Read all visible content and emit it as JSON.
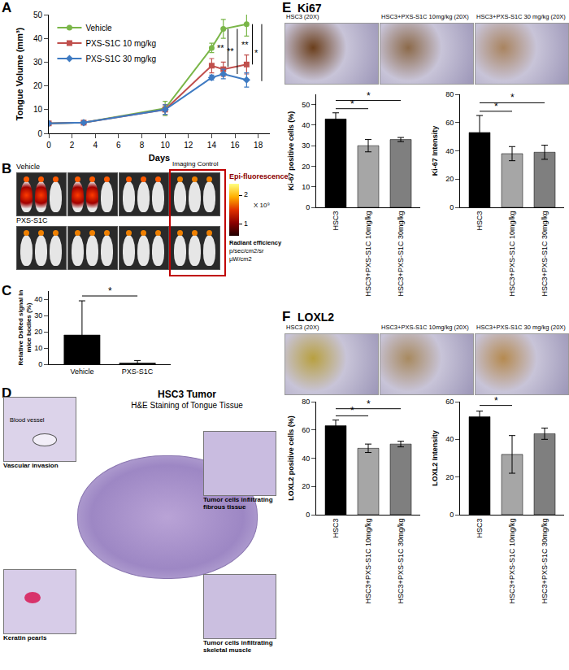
{
  "panel_labels": [
    "A",
    "B",
    "C",
    "D",
    "E",
    "F"
  ],
  "chart_data": [
    {
      "type": "line",
      "xlabel": "Days",
      "ylabel": "Tongue Volume (mm³)",
      "x": [
        0,
        3,
        10,
        14,
        15,
        17
      ],
      "xlim": [
        0,
        19
      ],
      "xticks": [
        0,
        2,
        4,
        6,
        8,
        10,
        12,
        14,
        16,
        18
      ],
      "ylim": [
        0,
        50
      ],
      "yticks": [
        0,
        10,
        20,
        30,
        40,
        50
      ],
      "legend": "top left",
      "series": [
        {
          "name": "Vehicle",
          "color": "#7ab648",
          "marker": "circle",
          "values": [
            4.2,
            4.5,
            10.5,
            36,
            44,
            46
          ],
          "errors": [
            0.3,
            0.3,
            3,
            2,
            4,
            5
          ]
        },
        {
          "name": "PXS-S1C 10 mg/kg",
          "color": "#c0504d",
          "marker": "square",
          "values": [
            4.2,
            4.5,
            10,
            28.5,
            27,
            29
          ],
          "errors": [
            0.5,
            0.5,
            2,
            3,
            3,
            4
          ]
        },
        {
          "name": "PXS-S1C 30 mg/kg",
          "color": "#3e7ac2",
          "marker": "diamond",
          "values": [
            4.2,
            4.5,
            10,
            23.5,
            25,
            22.5
          ],
          "errors": [
            0.3,
            0.3,
            2,
            1,
            2,
            3
          ]
        }
      ],
      "significance": [
        {
          "x": 15.4,
          "y0": 28,
          "y1": 44,
          "label": "**"
        },
        {
          "x": 16.2,
          "y0": 25,
          "y1": 44,
          "label": "**"
        },
        {
          "x": 17.5,
          "y0": 29,
          "y1": 46,
          "label": "**"
        },
        {
          "x": 18.3,
          "y0": 22,
          "y1": 46,
          "label": "*"
        }
      ]
    },
    {
      "type": "bar",
      "ylabel": "Relative DsRed signal in mice bodies (%)",
      "categories": [
        "Vehicle",
        "PXS-S1C"
      ],
      "values": [
        18,
        0.8
      ],
      "errors": [
        21,
        1.5
      ],
      "colors": [
        "#000000",
        "#000000"
      ],
      "ylim": [
        0,
        45
      ],
      "yticks": [
        0,
        10,
        20,
        30,
        40
      ],
      "significance": [
        {
          "from": 0,
          "to": 1,
          "y": 42,
          "label": "*"
        }
      ]
    },
    {
      "type": "bar",
      "ylabel": "Ki-67 positive cells (%)",
      "categories": [
        "HSC3",
        "HSC3+PXS-S1C 10mg/kg",
        "HSC3+PXS-S1C 30mg/kg"
      ],
      "values": [
        43,
        30,
        33
      ],
      "errors": [
        3,
        3,
        1
      ],
      "colors": [
        "#000000",
        "#a6a6a6",
        "#7f7f7f"
      ],
      "ylim": [
        0,
        55
      ],
      "yticks": [
        0,
        10,
        20,
        30,
        40,
        50
      ],
      "significance": [
        {
          "from": 0,
          "to": 1,
          "y": 48,
          "label": "*"
        },
        {
          "from": 0,
          "to": 2,
          "y": 52,
          "label": "*"
        }
      ]
    },
    {
      "type": "bar",
      "ylabel": "Ki-67 Intensity",
      "categories": [
        "HSC3",
        "HSC3+PXS-S1C 10mg/kg",
        "HSC3+PXS-S1C 30mg/kg"
      ],
      "values": [
        53,
        38,
        39
      ],
      "errors": [
        12,
        5,
        5
      ],
      "colors": [
        "#000000",
        "#a6a6a6",
        "#7f7f7f"
      ],
      "ylim": [
        0,
        80
      ],
      "yticks": [
        0,
        20,
        40,
        60,
        80
      ],
      "significance": [
        {
          "from": 0,
          "to": 1,
          "y": 68,
          "label": "*"
        },
        {
          "from": 0,
          "to": 2,
          "y": 74,
          "label": "*"
        }
      ]
    },
    {
      "type": "bar",
      "ylabel": "LOXL2 positive cells (%)",
      "categories": [
        "HSC3",
        "HSC3+PXS-S1C 10mg/kg",
        "HSC3+PXS-S1C 30mg/kg"
      ],
      "values": [
        63,
        47,
        50
      ],
      "errors": [
        4,
        3,
        2
      ],
      "colors": [
        "#000000",
        "#a6a6a6",
        "#7f7f7f"
      ],
      "ylim": [
        0,
        80
      ],
      "yticks": [
        0,
        20,
        40,
        60,
        80
      ],
      "significance": [
        {
          "from": 0,
          "to": 1,
          "y": 70,
          "label": "*"
        },
        {
          "from": 0,
          "to": 2,
          "y": 75,
          "label": "*"
        }
      ]
    },
    {
      "type": "bar",
      "ylabel": "LOXL2 Intensity",
      "categories": [
        "HSC3",
        "HSC3+PXS-S1C 10mg/kg",
        "HSC3+PXS-S1C 30mg/kg"
      ],
      "values": [
        52,
        32,
        43
      ],
      "errors": [
        3,
        10,
        3
      ],
      "colors": [
        "#000000",
        "#a6a6a6",
        "#7f7f7f"
      ],
      "ylim": [
        0,
        60
      ],
      "yticks": [
        0,
        20,
        40,
        60
      ],
      "significance": [
        {
          "from": 0,
          "to": 1,
          "y": 58,
          "label": "*"
        }
      ]
    }
  ],
  "images": {
    "B": {
      "rows": [
        "Vehicle",
        "PXS-S1C"
      ],
      "control": "Imaging Control",
      "colorbar": {
        "title": "Epi-fluorescence",
        "range": [
          0.6,
          2.4
        ],
        "ticks": [
          1,
          2
        ],
        "multiplier": "X 10⁹",
        "unit": [
          "Radiant efficiency",
          "p/sec/cm2/sr",
          "µW/cm2"
        ]
      }
    },
    "D": {
      "title": "HSC3 Tumor",
      "subtitle": "H&E Staining of Tongue Tissue",
      "insets": [
        "Vascular invasion",
        "Keratin pearls",
        "Tumor cells infiltrating fibrous tissue",
        "Tumor cells infiltrating skeletal muscle"
      ],
      "pointer": "Blood vessel"
    },
    "E": {
      "heading": "Ki67",
      "captions": [
        "HSC3 (20X)",
        "HSC3+PXS-S1C 10mg/kg (20X)",
        "HSC3+PXS-S1C 30 mg/kg (20X)"
      ]
    },
    "F": {
      "heading": "LOXL2",
      "captions": [
        "HSC3 (20X)",
        "HSC3+PXS-S1C 10mg/kg (20X)",
        "HSC3+PXS-S1C 30 mg/kg (20X)"
      ]
    }
  }
}
